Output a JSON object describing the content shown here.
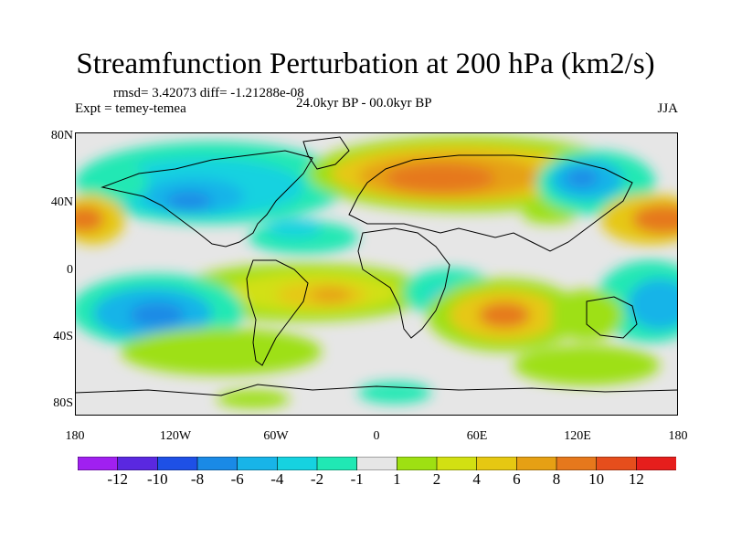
{
  "title": "Streamfunction Perturbation at 200 hPa (km2/s)",
  "rmsd_text": "rmsd= 3.42073 diff= -1.21288e-08",
  "experiment_text": "Expt = temey-temea",
  "period_text": "24.0kyr BP - 00.0kyr BP",
  "season_text": "JJA",
  "lat_ticks": [
    "80N",
    "40N",
    "0",
    "40S",
    "80S"
  ],
  "lon_ticks": [
    "180",
    "120W",
    "60W",
    "0",
    "60E",
    "120E",
    "180"
  ],
  "colorbar": {
    "labels": [
      "-12",
      "-10",
      "-8",
      "-6",
      "-4",
      "-2",
      "-1",
      "1",
      "2",
      "4",
      "6",
      "8",
      "10",
      "12"
    ],
    "colors": [
      "#a020f0",
      "#5a28e0",
      "#1e50e6",
      "#1a8ae6",
      "#18b4e8",
      "#16d2e0",
      "#20e8b4",
      "#e6e6e6",
      "#9ee012",
      "#d2e012",
      "#e6c812",
      "#e6a014",
      "#e6781c",
      "#e64e1c",
      "#e61e1c"
    ]
  }
}
